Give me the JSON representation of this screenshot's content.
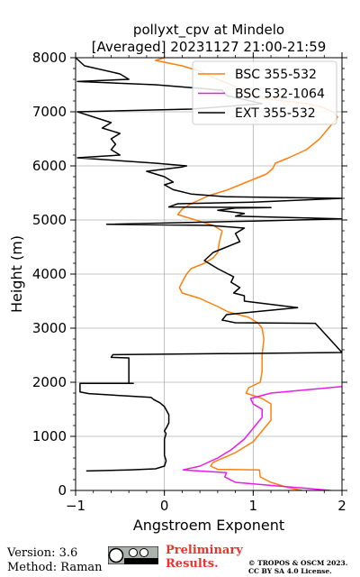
{
  "chart_data": {
    "type": "line",
    "title_line1": "pollyxt_cpv at Mindelo",
    "title_line2": "[Averaged] 20231127 21:00-21:59",
    "xlabel": "Angstroem Exponent",
    "ylabel": "Height (m)",
    "xlim": [
      -1,
      2
    ],
    "ylim": [
      0,
      8000
    ],
    "xticks": [
      -1,
      0,
      1,
      2
    ],
    "yticks": [
      0,
      1000,
      2000,
      3000,
      4000,
      5000,
      6000,
      7000,
      8000
    ],
    "grid": true,
    "legend_position": "top-right",
    "series": [
      {
        "name": "BSC 355-532",
        "color": "#ff7f0e",
        "points": [
          [
            1.55,
            0
          ],
          [
            1.4,
            50
          ],
          [
            1.2,
            150
          ],
          [
            1.08,
            250
          ],
          [
            1.07,
            380
          ],
          [
            0.6,
            390
          ],
          [
            0.52,
            450
          ],
          [
            0.55,
            520
          ],
          [
            0.8,
            700
          ],
          [
            1.0,
            900
          ],
          [
            1.1,
            1100
          ],
          [
            1.2,
            1300
          ],
          [
            1.2,
            1600
          ],
          [
            1.1,
            1700
          ],
          [
            0.92,
            1800
          ],
          [
            0.95,
            1900
          ],
          [
            1.08,
            2000
          ],
          [
            1.1,
            2200
          ],
          [
            1.1,
            2500
          ],
          [
            1.12,
            2800
          ],
          [
            1.1,
            3000
          ],
          [
            1.05,
            3100
          ],
          [
            0.95,
            3200
          ],
          [
            0.72,
            3300
          ],
          [
            0.6,
            3400
          ],
          [
            0.4,
            3550
          ],
          [
            0.2,
            3650
          ],
          [
            0.17,
            3750
          ],
          [
            0.2,
            3850
          ],
          [
            0.25,
            4000
          ],
          [
            0.3,
            4100
          ],
          [
            0.45,
            4200
          ],
          [
            0.55,
            4300
          ],
          [
            0.6,
            4400
          ],
          [
            0.62,
            4600
          ],
          [
            0.65,
            4800
          ],
          [
            0.55,
            4900
          ],
          [
            0.35,
            5000
          ],
          [
            0.15,
            5100
          ],
          [
            0.2,
            5200
          ],
          [
            0.3,
            5300
          ],
          [
            0.5,
            5450
          ],
          [
            0.7,
            5550
          ],
          [
            0.85,
            5650
          ],
          [
            1.0,
            5750
          ],
          [
            1.15,
            5850
          ],
          [
            1.22,
            5950
          ],
          [
            1.25,
            6050
          ],
          [
            1.4,
            6150
          ],
          [
            1.6,
            6300
          ],
          [
            1.75,
            6500
          ],
          [
            1.85,
            6700
          ],
          [
            1.95,
            6900
          ],
          [
            1.9,
            7000
          ],
          [
            1.75,
            7100
          ],
          [
            1.6,
            7150
          ],
          [
            1.35,
            7200
          ],
          [
            1.1,
            7250
          ],
          [
            0.9,
            7400
          ],
          [
            0.6,
            7600
          ],
          [
            0.4,
            7750
          ],
          [
            0.2,
            7850
          ],
          [
            -0.1,
            7950
          ],
          [
            0.0,
            8000
          ]
        ]
      },
      {
        "name": "BSC 532-1064",
        "color": "#e81ce8",
        "points": [
          [
            1.87,
            0
          ],
          [
            1.6,
            40
          ],
          [
            1.3,
            80
          ],
          [
            0.8,
            150
          ],
          [
            0.68,
            250
          ],
          [
            0.7,
            330
          ],
          [
            0.21,
            380
          ],
          [
            0.4,
            450
          ],
          [
            0.6,
            600
          ],
          [
            0.75,
            750
          ],
          [
            0.9,
            950
          ],
          [
            1.0,
            1150
          ],
          [
            1.1,
            1350
          ],
          [
            1.1,
            1500
          ],
          [
            1.0,
            1600
          ],
          [
            0.97,
            1700
          ],
          [
            1.2,
            1800
          ],
          [
            1.6,
            1860
          ],
          [
            2.0,
            1920
          ]
        ]
      },
      {
        "name": "EXT 355-532",
        "color": "#000000",
        "points": [
          [
            -0.88,
            360
          ],
          [
            -0.4,
            380
          ],
          [
            -0.1,
            400
          ],
          [
            0.0,
            450
          ],
          [
            0.02,
            550
          ],
          [
            0.0,
            650
          ],
          [
            0.0,
            800
          ],
          [
            0.0,
            950
          ],
          [
            0.02,
            1050
          ],
          [
            0.0,
            1100
          ],
          [
            0.03,
            1180
          ],
          [
            0.05,
            1250
          ],
          [
            0.05,
            1400
          ],
          [
            0.0,
            1550
          ],
          [
            -0.05,
            1620
          ],
          [
            -0.12,
            1680
          ],
          [
            -0.15,
            1720
          ],
          [
            -0.85,
            1790
          ],
          [
            -0.95,
            1820
          ],
          [
            -0.95,
            1980
          ],
          [
            -0.35,
            1980
          ],
          [
            -0.4,
            1980
          ],
          [
            -0.4,
            2450
          ],
          [
            -0.6,
            2460
          ],
          [
            -0.58,
            2510
          ],
          [
            2.0,
            2550
          ],
          [
            1.7,
            3090
          ],
          [
            0.8,
            3100
          ],
          [
            0.65,
            3150
          ],
          [
            0.7,
            3250
          ],
          [
            1.0,
            3300
          ],
          [
            1.5,
            3380
          ],
          [
            0.9,
            3500
          ],
          [
            0.9,
            3600
          ],
          [
            0.78,
            3650
          ],
          [
            0.85,
            3750
          ],
          [
            0.75,
            3850
          ],
          [
            0.78,
            3950
          ],
          [
            0.6,
            4100
          ],
          [
            0.5,
            4200
          ],
          [
            0.45,
            4250
          ],
          [
            0.55,
            4400
          ],
          [
            0.7,
            4500
          ],
          [
            0.85,
            4600
          ],
          [
            0.8,
            4750
          ],
          [
            0.9,
            4850
          ],
          [
            0.5,
            4900
          ],
          [
            -0.65,
            4920
          ],
          [
            1.0,
            4980
          ],
          [
            2.0,
            5020
          ],
          [
            0.8,
            5070
          ],
          [
            0.9,
            5120
          ],
          [
            0.6,
            5180
          ],
          [
            0.8,
            5220
          ],
          [
            1.2,
            5230
          ],
          [
            0.05,
            5240
          ],
          [
            0.15,
            5300
          ],
          [
            1.0,
            5330
          ],
          [
            2.0,
            5400
          ],
          [
            0.7,
            5430
          ],
          [
            0.3,
            5480
          ],
          [
            0.1,
            5560
          ],
          [
            0.0,
            5650
          ],
          [
            0.1,
            5700
          ],
          [
            0.0,
            5800
          ],
          [
            -0.2,
            5900
          ],
          [
            0.2,
            5980
          ],
          [
            0.25,
            6000
          ],
          [
            -0.1,
            6050
          ],
          [
            -0.98,
            6150
          ],
          [
            -0.5,
            6200
          ],
          [
            -0.6,
            6300
          ],
          [
            -0.55,
            6400
          ],
          [
            -0.6,
            6500
          ],
          [
            -0.5,
            6600
          ],
          [
            -0.7,
            6700
          ],
          [
            -0.6,
            6800
          ],
          [
            -0.98,
            7000
          ],
          [
            0.3,
            7050
          ],
          [
            1.1,
            7150
          ],
          [
            0.7,
            7300
          ],
          [
            0.65,
            7400
          ],
          [
            -0.1,
            7500
          ],
          [
            -0.98,
            7560
          ],
          [
            -0.4,
            7600
          ],
          [
            -0.5,
            7700
          ],
          [
            -0.9,
            7850
          ],
          [
            -1.0,
            8000
          ]
        ]
      }
    ]
  },
  "footer": {
    "version": "Version: 3.6",
    "method": "Method: Raman",
    "preliminary_line1": "Preliminary",
    "preliminary_line2": "Results.",
    "copyright_line1": "© TROPOS & OSCM 2023.",
    "copyright_line2": "CC BY SA 4.0 License."
  }
}
